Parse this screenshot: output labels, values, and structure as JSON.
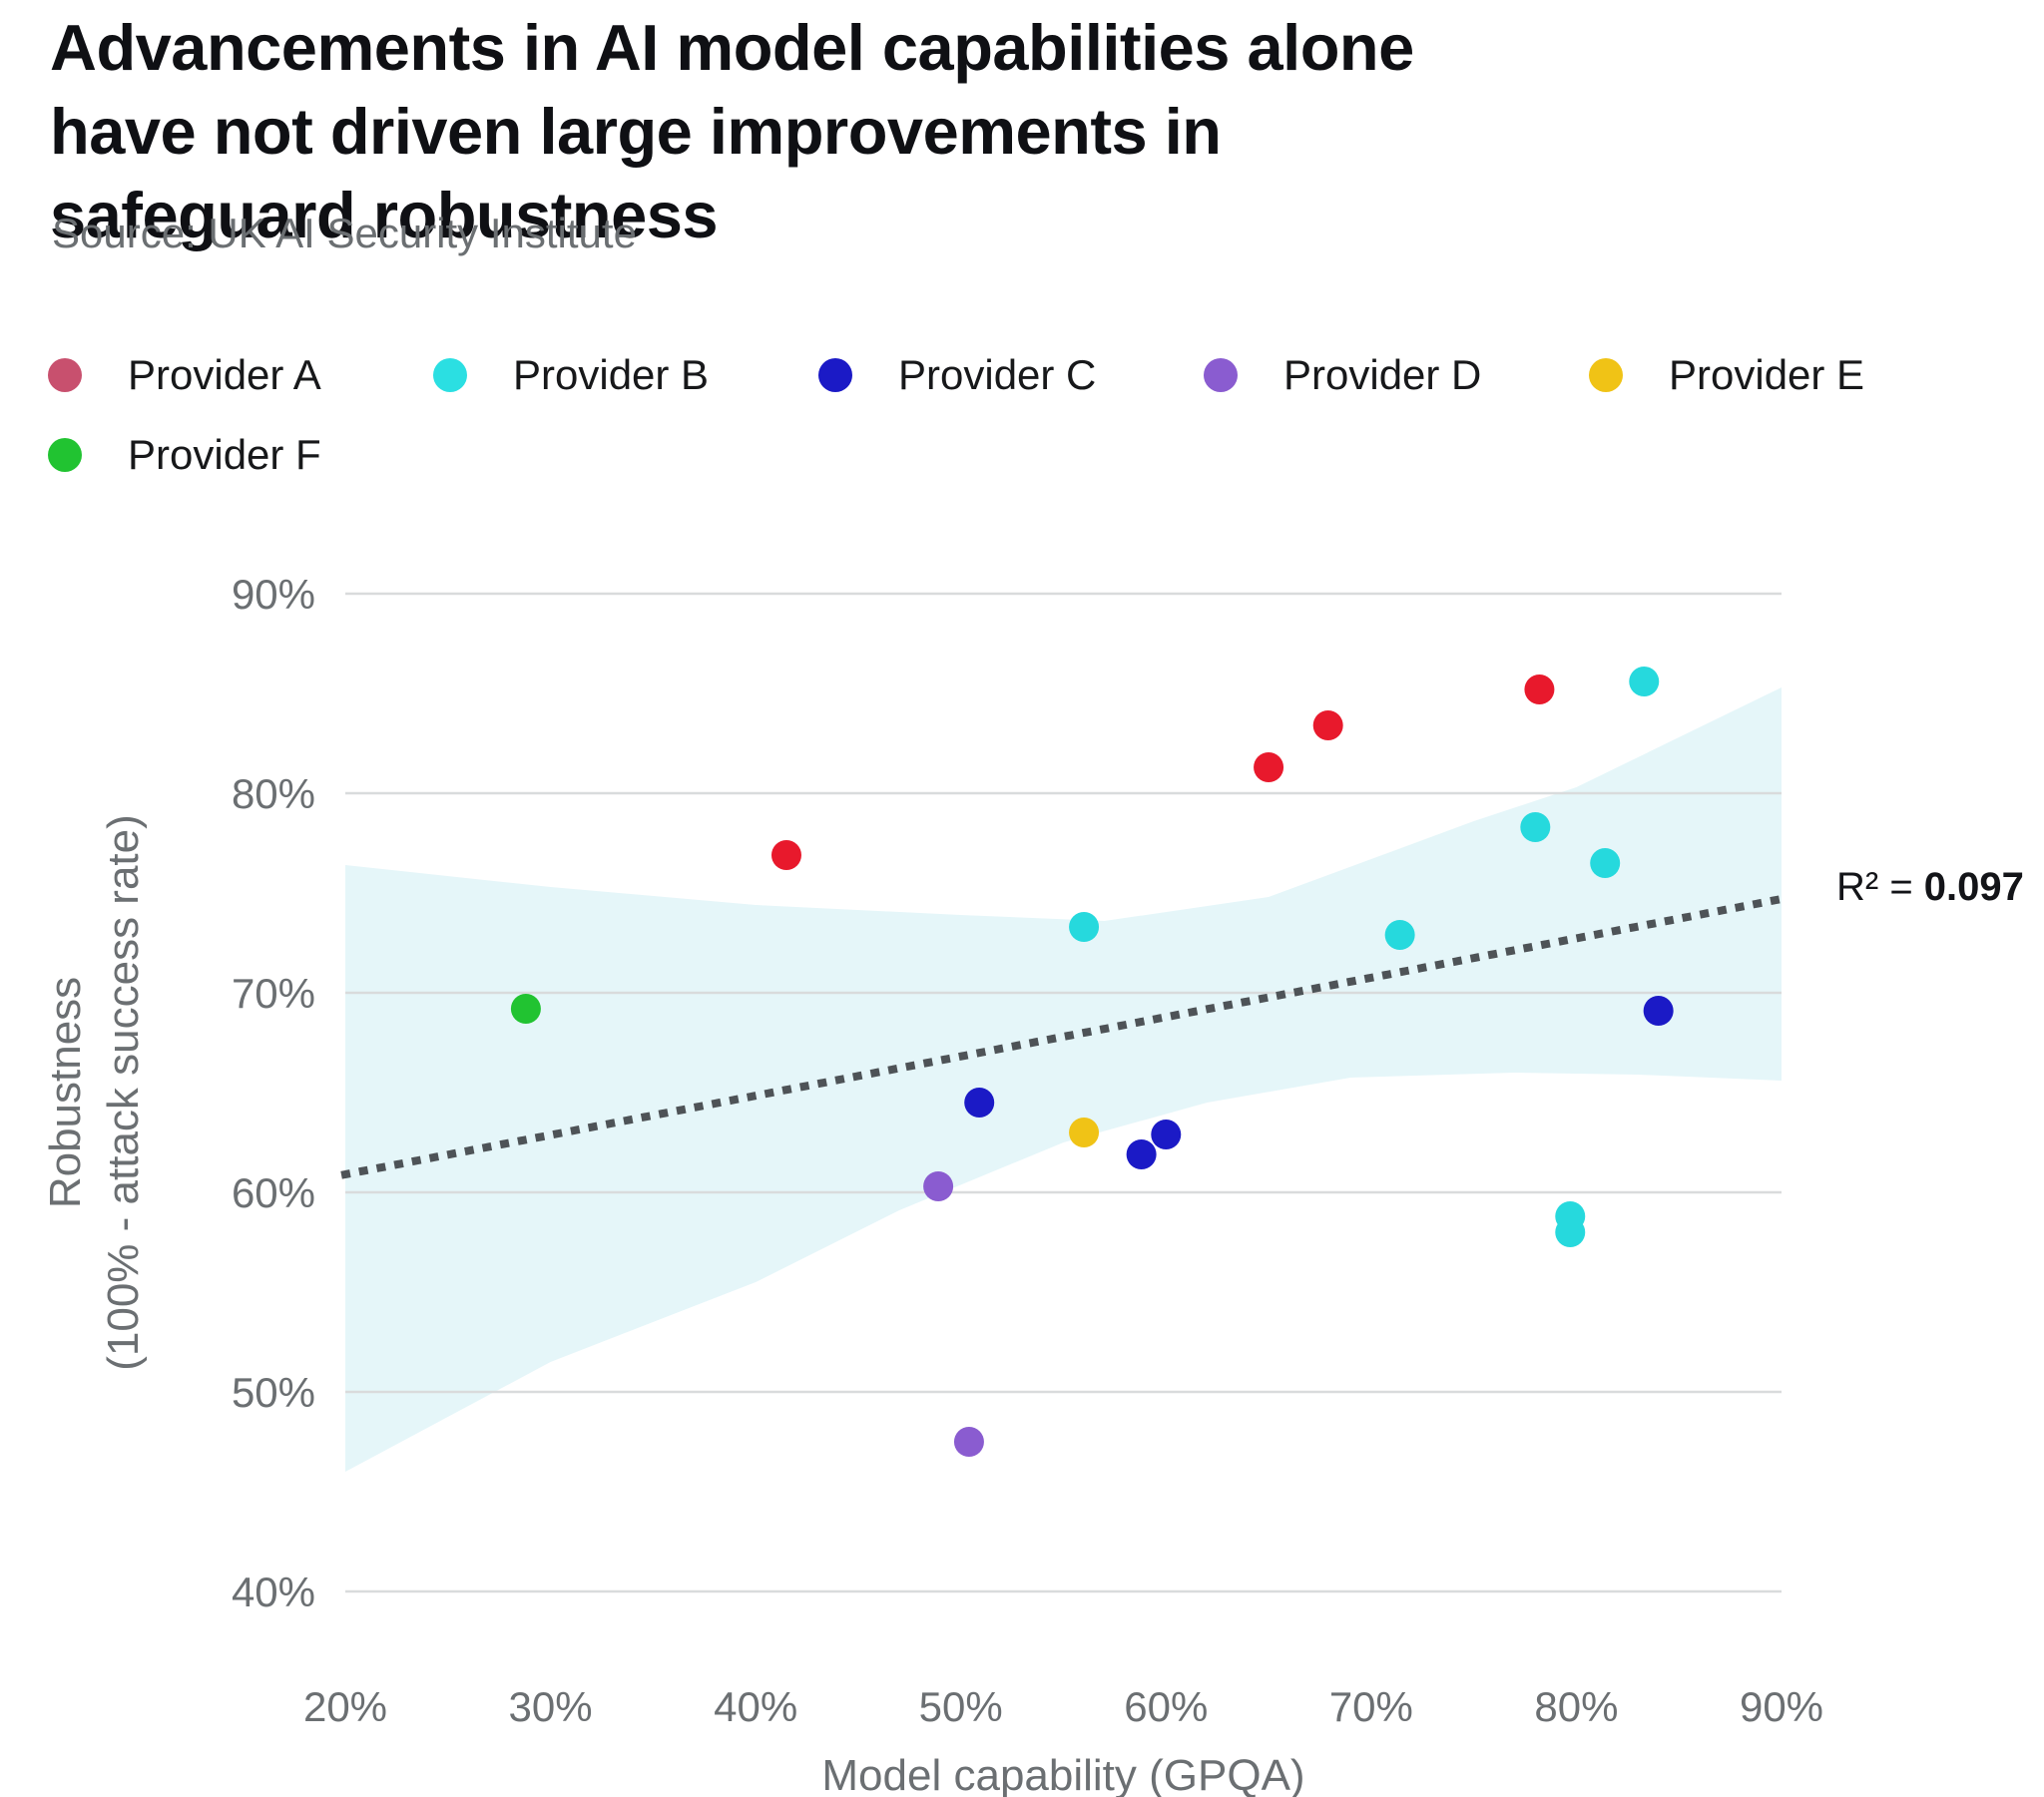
{
  "header": {
    "title": "Advancements in AI model capabilities alone have not driven large improvements in safeguard robustness",
    "source": "Source: UK AI Security Institute"
  },
  "legend": {
    "items": [
      {
        "label": "Provider A",
        "swatch_color": "#c8506e"
      },
      {
        "label": "Provider B",
        "swatch_color": "#2bdfe2"
      },
      {
        "label": "Provider C",
        "swatch_color": "#1b1ac6"
      },
      {
        "label": "Provider D",
        "swatch_color": "#8a5cd0"
      },
      {
        "label": "Provider E",
        "swatch_color": "#f0c316"
      },
      {
        "label": "Provider F",
        "swatch_color": "#21c331"
      }
    ]
  },
  "annotations": {
    "r2_prefix": "R² = ",
    "r2_value": "0.097"
  },
  "chart_data": {
    "type": "scatter",
    "title": "Advancements in AI model capabilities alone have not driven large improvements in safeguard robustness",
    "xlabel": "Model capability (GPQA)",
    "ylabel_line1": "Robustness",
    "ylabel_line2": "(100% - attack success rate)",
    "xlim": [
      20,
      90
    ],
    "ylim": [
      40,
      90
    ],
    "x_ticks": [
      {
        "value": 20,
        "label": "20%"
      },
      {
        "value": 30,
        "label": "30%"
      },
      {
        "value": 40,
        "label": "40%"
      },
      {
        "value": 50,
        "label": "50%"
      },
      {
        "value": 60,
        "label": "60%"
      },
      {
        "value": 70,
        "label": "70%"
      },
      {
        "value": 80,
        "label": "80%"
      },
      {
        "value": 90,
        "label": "90%"
      }
    ],
    "y_ticks": [
      {
        "value": 40,
        "label": "40%"
      },
      {
        "value": 50,
        "label": "50%"
      },
      {
        "value": 60,
        "label": "60%"
      },
      {
        "value": 70,
        "label": "70%"
      },
      {
        "value": 80,
        "label": "80%"
      },
      {
        "value": 90,
        "label": "90%"
      }
    ],
    "grid": true,
    "legend_position": "top",
    "series": [
      {
        "name": "Provider A",
        "color": "#e8192c",
        "points": [
          [
            41.5,
            76.9
          ],
          [
            65.0,
            81.3
          ],
          [
            67.9,
            83.4
          ],
          [
            78.2,
            85.2
          ]
        ]
      },
      {
        "name": "Provider B",
        "color": "#26d9dd",
        "points": [
          [
            56.0,
            73.3
          ],
          [
            71.4,
            72.9
          ],
          [
            78.0,
            78.3
          ],
          [
            81.4,
            76.5
          ],
          [
            83.3,
            85.6
          ],
          [
            79.7,
            58.8
          ],
          [
            79.7,
            58.0
          ]
        ]
      },
      {
        "name": "Provider C",
        "color": "#1b1ac6",
        "points": [
          [
            50.9,
            64.5
          ],
          [
            58.8,
            61.9
          ],
          [
            60.0,
            62.9
          ],
          [
            84.0,
            69.1
          ]
        ]
      },
      {
        "name": "Provider D",
        "color": "#8a5cd0",
        "points": [
          [
            48.9,
            60.3
          ],
          [
            50.4,
            47.5
          ]
        ]
      },
      {
        "name": "Provider E",
        "color": "#f0c316",
        "points": [
          [
            56.0,
            63.0
          ]
        ]
      },
      {
        "name": "Provider F",
        "color": "#21c331",
        "points": [
          [
            28.8,
            69.2
          ]
        ]
      }
    ],
    "trend": {
      "style": "dotted",
      "color": "#4e5357",
      "x": [
        20,
        90
      ],
      "y": [
        60.9,
        74.7
      ],
      "r2": 0.097
    },
    "confidence_band": {
      "color": "#e5f6f9",
      "top": [
        [
          20,
          76.4
        ],
        [
          30,
          75.3
        ],
        [
          40,
          74.4
        ],
        [
          50,
          73.9
        ],
        [
          57,
          73.6
        ],
        [
          65,
          74.8
        ],
        [
          75,
          78.6
        ],
        [
          80,
          80.3
        ],
        [
          90,
          85.3
        ]
      ],
      "bottom": [
        [
          20,
          46.0
        ],
        [
          30,
          51.5
        ],
        [
          40,
          55.5
        ],
        [
          47,
          59.1
        ],
        [
          55,
          62.5
        ],
        [
          62,
          64.5
        ],
        [
          69,
          65.75
        ],
        [
          77,
          66.0
        ],
        [
          83,
          65.9
        ],
        [
          90,
          65.6
        ]
      ]
    }
  }
}
